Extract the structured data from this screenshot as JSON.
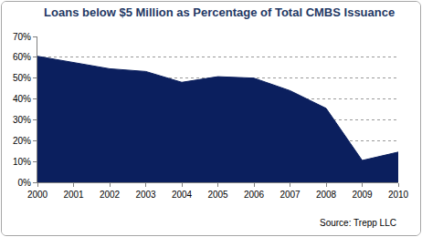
{
  "chart_data": {
    "type": "area",
    "title": "Loans below $5 Million as Percentage of Total CMBS Issuance",
    "source": "Source: Trepp LLC",
    "x": [
      2000,
      2001,
      2002,
      2003,
      2004,
      2005,
      2006,
      2007,
      2008,
      2009,
      2010
    ],
    "values": [
      60.5,
      57.5,
      54.5,
      53.2,
      48,
      50.7,
      50,
      44,
      35.5,
      10.5,
      14.5
    ],
    "color": "#0b1f5e",
    "xlim": [
      2000,
      2010
    ],
    "xticks": [
      2000,
      2001,
      2002,
      2003,
      2004,
      2005,
      2006,
      2007,
      2008,
      2009,
      2010
    ],
    "ylim": [
      0,
      70
    ],
    "yticks": [
      {
        "value": 0,
        "label": "0%"
      },
      {
        "value": 10,
        "label": "10%"
      },
      {
        "value": 20,
        "label": "20%"
      },
      {
        "value": 30,
        "label": "30%"
      },
      {
        "value": 40,
        "label": "40%"
      },
      {
        "value": 50,
        "label": "50%"
      },
      {
        "value": 60,
        "label": "60%"
      },
      {
        "value": 70,
        "label": "70%"
      }
    ],
    "grid": true
  }
}
